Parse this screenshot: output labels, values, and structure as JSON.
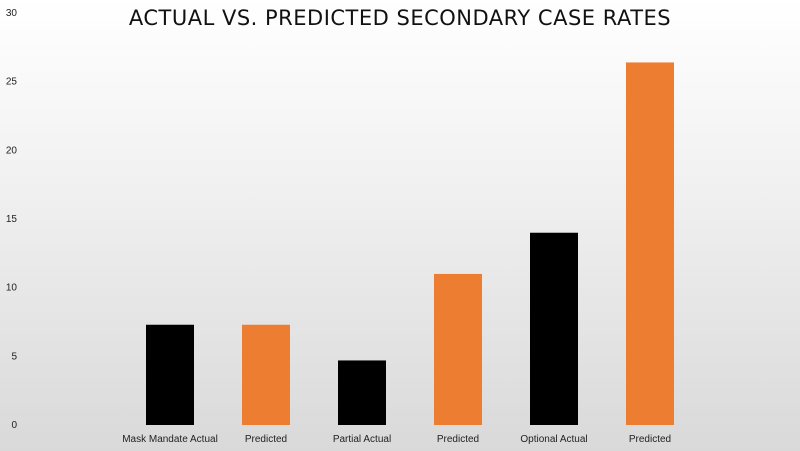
{
  "chart_data": {
    "type": "bar",
    "title": "ACTUAL VS. PREDICTED SECONDARY CASE RATES",
    "xlabel": "",
    "ylabel": "",
    "ylim": [
      0,
      30
    ],
    "yticks": [
      0,
      5,
      10,
      15,
      20,
      25,
      30
    ],
    "grid": false,
    "legend": "none",
    "categories": [
      "Mask Mandate Actual",
      "Predicted",
      "Partial Actual",
      "Predicted",
      "Optional Actual",
      "Predicted"
    ],
    "values": [
      7.3,
      7.3,
      4.7,
      11.0,
      14.0,
      26.4
    ],
    "bar_colors": [
      "#000000",
      "#ed7d31",
      "#000000",
      "#ed7d31",
      "#000000",
      "#ed7d31"
    ]
  }
}
